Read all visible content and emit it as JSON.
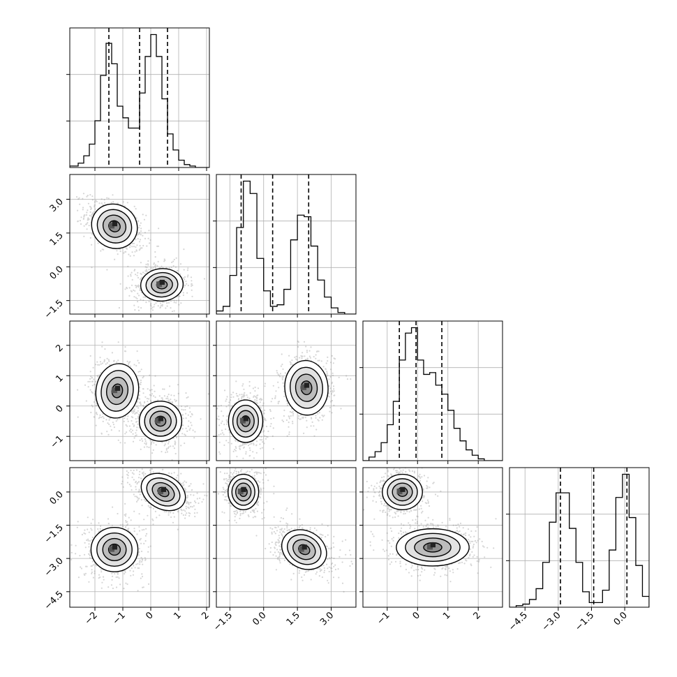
{
  "chart_data": {
    "type": "corner",
    "title": "",
    "parameters": 4,
    "colors": {
      "line": "#000000",
      "grid": "#b0b0b0",
      "quantile": "#000000",
      "density_dark": "#222222",
      "points": "#888888"
    },
    "axes": [
      {
        "range": [
          -2.9,
          2.1
        ],
        "ticks": [
          -2,
          -1,
          0,
          1,
          2
        ],
        "tick_labels": [
          "−2",
          "−1",
          "0",
          "1",
          "2"
        ]
      },
      {
        "range": [
          -2.1,
          4.1
        ],
        "ticks": [
          -1.5,
          0.0,
          1.5,
          3.0
        ],
        "tick_labels": [
          "−1.5",
          "0.0",
          "1.5",
          "3.0"
        ]
      },
      {
        "range": [
          -1.8,
          2.8
        ],
        "ticks": [
          -1,
          0,
          1,
          2
        ],
        "tick_labels": [
          "−1",
          "0",
          "1",
          "2"
        ]
      },
      {
        "range": [
          -5.2,
          1.1
        ],
        "ticks": [
          -4.5,
          -3.0,
          -1.5,
          0.0
        ],
        "tick_labels": [
          "−4.5",
          "−3.0",
          "−1.5",
          "0.0"
        ]
      }
    ],
    "y_axes": [
      null,
      {
        "range": [
          -2.1,
          4.1
        ],
        "tick_labels": [
          "−1.5",
          "0.0",
          "1.5",
          "3.0"
        ]
      },
      {
        "range": [
          -1.8,
          2.8
        ],
        "tick_labels": [
          "−1",
          "0",
          "1",
          "2"
        ]
      },
      {
        "range": [
          -5.2,
          1.1
        ],
        "tick_labels": [
          "−4.5",
          "−3.0",
          "−1.5",
          "0.0"
        ]
      }
    ],
    "histograms": [
      {
        "param": 0,
        "quantiles": [
          -1.5,
          -0.4,
          0.6
        ],
        "bin_edges": [
          -2.9,
          -2.6,
          -2.4,
          -2.2,
          -2.0,
          -1.8,
          -1.6,
          -1.4,
          -1.2,
          -1.0,
          -0.8,
          -0.6,
          -0.4,
          -0.2,
          0.0,
          0.2,
          0.4,
          0.6,
          0.8,
          1.0,
          1.2,
          1.4,
          1.6,
          1.8,
          2.1
        ],
        "counts": [
          0.01,
          0.03,
          0.08,
          0.16,
          0.32,
          0.63,
          0.85,
          0.71,
          0.42,
          0.34,
          0.27,
          0.27,
          0.51,
          0.76,
          0.91,
          0.76,
          0.47,
          0.23,
          0.12,
          0.05,
          0.02,
          0.01,
          0.0,
          0.0
        ]
      },
      {
        "param": 1,
        "quantiles": [
          -1.0,
          0.4,
          2.0
        ],
        "bin_edges": [
          -2.1,
          -1.8,
          -1.5,
          -1.2,
          -0.9,
          -0.6,
          -0.3,
          0.0,
          0.3,
          0.6,
          0.9,
          1.2,
          1.5,
          1.8,
          2.1,
          2.4,
          2.7,
          3.0,
          3.3,
          3.6,
          4.1
        ],
        "counts": [
          0.02,
          0.05,
          0.25,
          0.56,
          0.86,
          0.78,
          0.36,
          0.15,
          0.05,
          0.06,
          0.16,
          0.48,
          0.64,
          0.63,
          0.44,
          0.22,
          0.11,
          0.04,
          0.01,
          0.0
        ]
      },
      {
        "param": 2,
        "quantiles": [
          -0.6,
          -0.05,
          0.8
        ],
        "bin_edges": [
          -1.8,
          -1.6,
          -1.4,
          -1.2,
          -1.0,
          -0.8,
          -0.6,
          -0.4,
          -0.2,
          0.0,
          0.2,
          0.4,
          0.6,
          0.8,
          1.0,
          1.2,
          1.4,
          1.6,
          1.8,
          2.0,
          2.2,
          2.8
        ],
        "counts": [
          0.0,
          0.02,
          0.05,
          0.1,
          0.2,
          0.33,
          0.56,
          0.71,
          0.74,
          0.56,
          0.48,
          0.49,
          0.42,
          0.37,
          0.28,
          0.18,
          0.11,
          0.06,
          0.03,
          0.01,
          0.0
        ]
      },
      {
        "param": 3,
        "quantiles": [
          -2.9,
          -1.4,
          0.1
        ],
        "bin_edges": [
          -5.2,
          -4.9,
          -4.6,
          -4.3,
          -4.0,
          -3.7,
          -3.4,
          -3.1,
          -2.8,
          -2.5,
          -2.2,
          -1.9,
          -1.6,
          -1.3,
          -1.0,
          -0.7,
          -0.4,
          -0.1,
          0.2,
          0.5,
          0.8,
          1.1
        ],
        "counts": [
          0.0,
          0.01,
          0.02,
          0.05,
          0.12,
          0.29,
          0.55,
          0.74,
          0.74,
          0.51,
          0.29,
          0.1,
          0.03,
          0.03,
          0.11,
          0.37,
          0.71,
          0.86,
          0.58,
          0.27,
          0.07
        ]
      }
    ],
    "pairs": [
      {
        "x": 0,
        "y": 1,
        "modes": [
          {
            "center": [
              -1.3,
              1.8
            ],
            "sd": [
              0.42,
              0.48
            ],
            "rho": -0.45
          },
          {
            "center": [
              0.4,
              -0.8
            ],
            "sd": [
              0.38,
              0.36
            ],
            "rho": 0.05
          }
        ]
      },
      {
        "x": 0,
        "y": 2,
        "modes": [
          {
            "center": [
              -1.2,
              0.5
            ],
            "sd": [
              0.38,
              0.45
            ],
            "rho": -0.1
          },
          {
            "center": [
              0.35,
              -0.5
            ],
            "sd": [
              0.38,
              0.33
            ],
            "rho": 0.0
          }
        ]
      },
      {
        "x": 1,
        "y": 2,
        "modes": [
          {
            "center": [
              -0.8,
              -0.5
            ],
            "sd": [
              0.38,
              0.35
            ],
            "rho": 0.0
          },
          {
            "center": [
              1.9,
              0.6
            ],
            "sd": [
              0.48,
              0.45
            ],
            "rho": 0.05
          }
        ]
      },
      {
        "x": 0,
        "y": 3,
        "modes": [
          {
            "center": [
              -1.3,
              -2.6
            ],
            "sd": [
              0.42,
              0.5
            ],
            "rho": 0.0
          },
          {
            "center": [
              0.45,
              0.0
            ],
            "sd": [
              0.42,
              0.38
            ],
            "rho": -0.35
          }
        ]
      },
      {
        "x": 1,
        "y": 3,
        "modes": [
          {
            "center": [
              -0.9,
              -0.0
            ],
            "sd": [
              0.34,
              0.4
            ],
            "rho": 0.0
          },
          {
            "center": [
              1.8,
              -2.6
            ],
            "sd": [
              0.52,
              0.42
            ],
            "rho": -0.35
          }
        ]
      },
      {
        "x": 2,
        "y": 3,
        "modes": [
          {
            "center": [
              -0.5,
              -0.0
            ],
            "sd": [
              0.33,
              0.4
            ],
            "rho": 0.0
          },
          {
            "center": [
              0.5,
              -2.5
            ],
            "sd": [
              0.6,
              0.42
            ],
            "rho": 0.0
          }
        ]
      }
    ],
    "contour_levels_sigma": [
      0.5,
      1.0,
      1.5,
      2.0
    ],
    "grid": true,
    "legend": "none"
  }
}
